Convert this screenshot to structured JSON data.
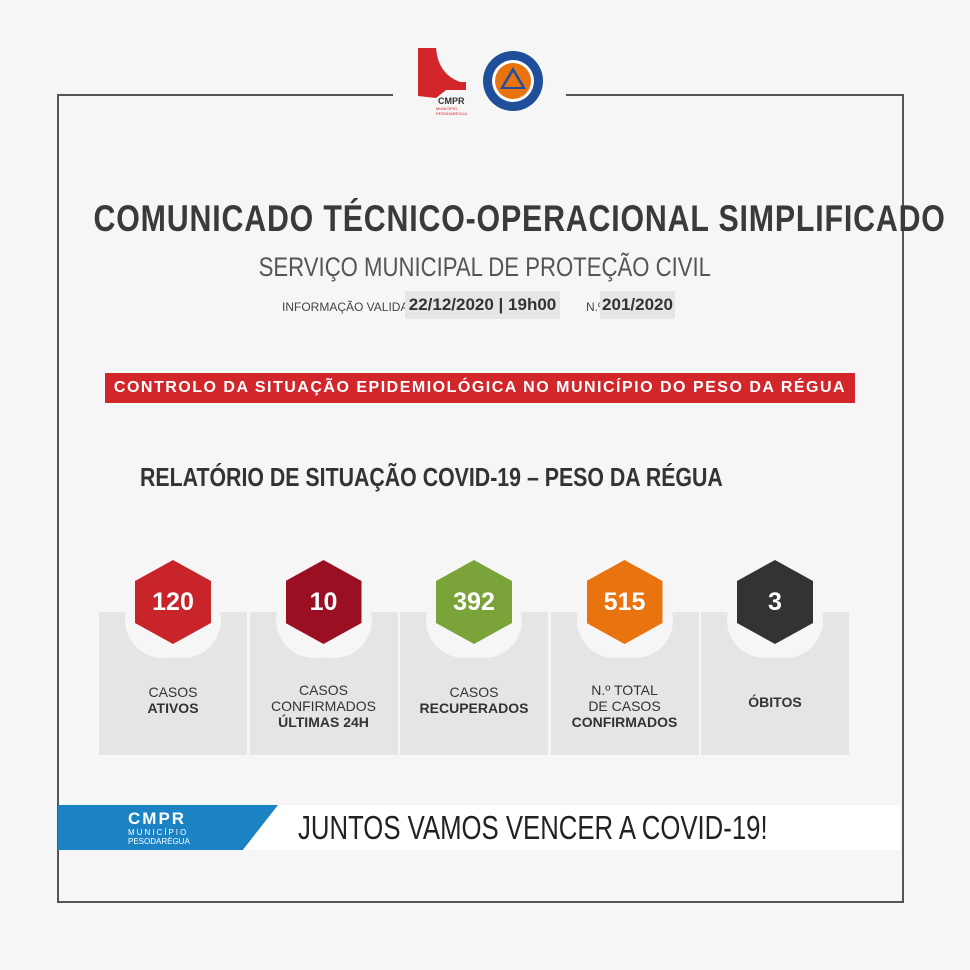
{
  "header": {
    "logo_left_text": "CMPR MUNICÍPIO PESODARÉGUA",
    "logo_right_text": "PROTECÇÃO CIVIL PESO DA RÉGUA",
    "title": "COMUNICADO TÉCNICO-OPERACIONAL SIMPLIFICADO",
    "subtitle": "SERVIÇO MUNICIPAL DE PROTEÇÃO CIVIL",
    "validated_label": "INFORMAÇÃO VALIDADA EM",
    "validated_value": "22/12/2020 | 19h00",
    "number_label": "N.º",
    "number_value": "201/2020"
  },
  "banner": "CONTROLO DA SITUAÇÃO EPIDEMIOLÓGICA NO MUNICÍPIO DO PESO DA RÉGUA",
  "report_heading": "RELATÓRIO DE SITUAÇÃO COVID-19 – PESO DA RÉGUA",
  "stats": [
    {
      "value": "120",
      "line1": "CASOS",
      "line2": "",
      "bold": "ATIVOS",
      "color": "#c8242a"
    },
    {
      "value": "10",
      "line1": "CASOS",
      "line2": "CONFIRMADOS",
      "bold": "ÚLTIMAS 24H",
      "color": "#9b0f22"
    },
    {
      "value": "392",
      "line1": "CASOS",
      "line2": "",
      "bold": "RECUPERADOS",
      "color": "#7aa43a"
    },
    {
      "value": "515",
      "line1": "N.º TOTAL",
      "line2": "DE CASOS",
      "bold": "CONFIRMADOS",
      "color": "#e8730f"
    },
    {
      "value": "3",
      "line1": "",
      "line2": "",
      "bold": "ÓBITOS",
      "color": "#333333"
    }
  ],
  "footer": {
    "logo_cmpr": "CMPR",
    "logo_municipio": "MUNICÍPIO",
    "logo_place": "PESODARÉGUA",
    "slogan": "JUNTOS VAMOS VENCER A COVID-19!"
  },
  "colors": {
    "red": "#d3262b",
    "blue": "#1b82c4",
    "civil_orange": "#e8730f",
    "civil_blue": "#1f4e9a"
  }
}
